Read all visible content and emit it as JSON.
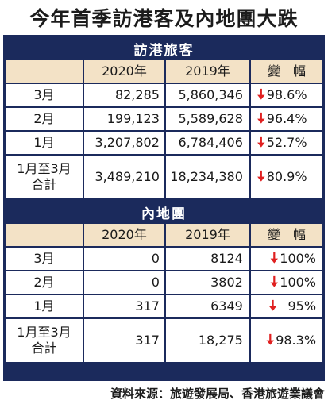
{
  "title": "今年首季訪港客及內地團大跌",
  "source": "資料來源：旅遊發展局、香港旅遊業議會",
  "icons": {
    "down": "down-arrow-icon",
    "down_color": "#e02020"
  },
  "colors": {
    "frame": "#1b2a5c",
    "header_row": "#f3e2c6"
  },
  "headers": {
    "col2020": "2020年",
    "col2019": "2019年",
    "change": "變　幅"
  },
  "visitors": {
    "heading": "訪港旅客",
    "rows": [
      {
        "label": "3月",
        "y2020": "82,285",
        "y2019": "5,860,346",
        "change": "98.6%"
      },
      {
        "label": "2月",
        "y2020": "199,123",
        "y2019": "5,589,628",
        "change": "96.4%"
      },
      {
        "label": "1月",
        "y2020": "3,207,802",
        "y2019": "6,784,406",
        "change": "52.7%"
      }
    ],
    "total": {
      "label_line1": "1月至3月",
      "label_line2": "合計",
      "y2020": "3,489,210",
      "y2019": "18,234,380",
      "change": "80.9%"
    }
  },
  "tours": {
    "heading": "內地團",
    "rows": [
      {
        "label": "3月",
        "y2020": "0",
        "y2019": "8124",
        "change": "100%"
      },
      {
        "label": "2月",
        "y2020": "0",
        "y2019": "3802",
        "change": "100%"
      },
      {
        "label": "1月",
        "y2020": "317",
        "y2019": "6349",
        "change": "95%"
      }
    ],
    "total": {
      "label_line1": "1月至3月",
      "label_line2": "合計",
      "y2020": "317",
      "y2019": "18,275",
      "change": "98.3%"
    }
  }
}
